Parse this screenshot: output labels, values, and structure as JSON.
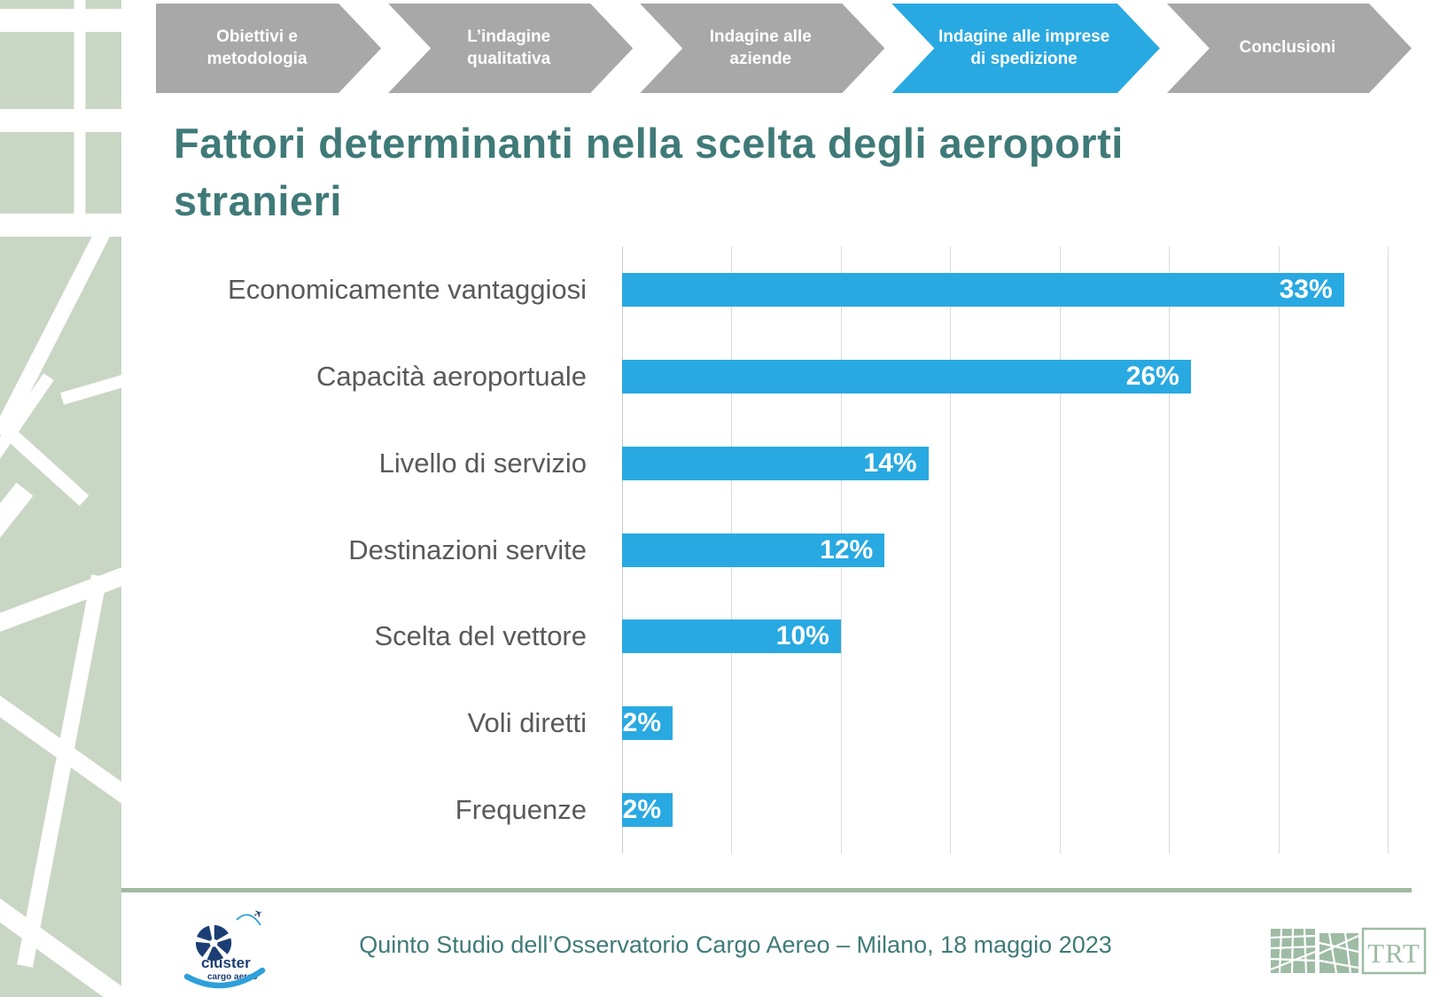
{
  "slide": {
    "title": "Fattori determinanti nella scelta degli aeroporti stranieri",
    "footer_caption": "Quinto Studio dell’Osservatorio Cargo Aereo – Milano, 18 maggio 2023"
  },
  "nav": {
    "items": [
      {
        "label": "Obiettivi e metodologia",
        "active": false
      },
      {
        "label": "L’indagine qualitativa",
        "active": false
      },
      {
        "label": "Indagine alle aziende",
        "active": false
      },
      {
        "label": "Indagine alle imprese di spedizione",
        "active": true
      },
      {
        "label": "Conclusioni",
        "active": false
      }
    ]
  },
  "chart_data": {
    "type": "bar",
    "orientation": "horizontal",
    "title": "Fattori determinanti nella scelta degli aeroporti stranieri",
    "categories": [
      "Economicamente vantaggiosi",
      "Capacità aeroportuale",
      "Livello di servizio",
      "Destinazioni servite",
      "Scelta del vettore",
      "Voli diretti",
      "Frequenze"
    ],
    "values": [
      33,
      26,
      14,
      12,
      10,
      2,
      2
    ],
    "value_labels": [
      "33%",
      "26%",
      "14%",
      "12%",
      "10%",
      "2%",
      "2%"
    ],
    "xlabel": "",
    "ylabel": "",
    "xlim": [
      0,
      35
    ],
    "gridline_step": 5,
    "grid": true,
    "legend": false,
    "bar_color": "#29A9E1",
    "value_label_position": "inside-end"
  },
  "logos": {
    "cluster": {
      "line1": "cluster",
      "line2": "cargo aereo"
    },
    "trt": {
      "text": "TRT"
    }
  },
  "colors": {
    "accent_blue": "#29A9E1",
    "nav_gray": "#A8A8A8",
    "title_teal": "#3F7A78",
    "label_gray": "#595959",
    "grid_gray": "#DADADA",
    "sage_pattern": "#C9D6C4",
    "divider_green": "#A0BAA1",
    "trt_green": "#9EBBA4",
    "cluster_navy": "#1C3E74",
    "cluster_blue": "#2E9FD9"
  }
}
